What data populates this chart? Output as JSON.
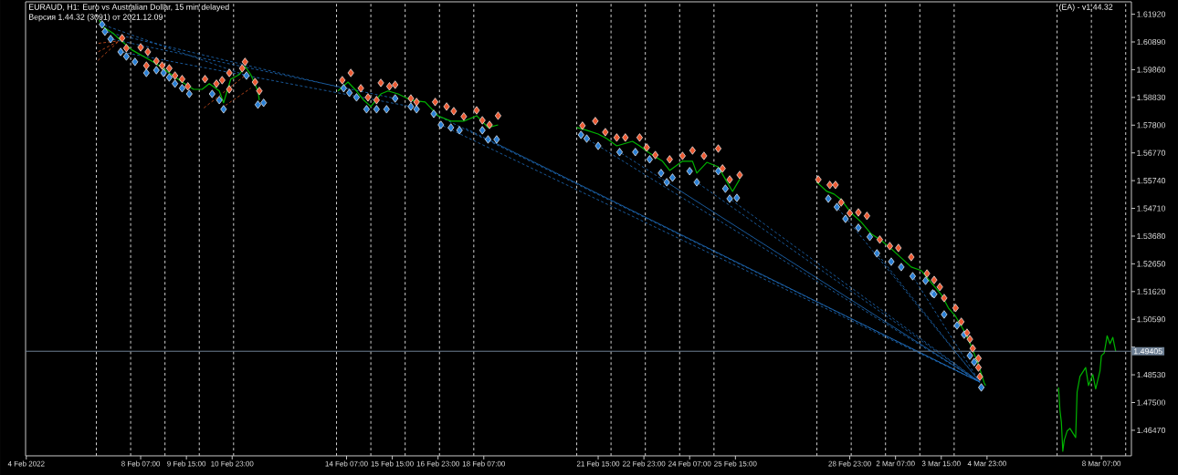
{
  "chart_data": {
    "type": "line",
    "title": "EURAUD, H1: Euro vs Australian Dollar, 15 min delayed",
    "subtitle": "Версия 1.44.32 (3091) от 2021.12.09",
    "annotations": [
      "(EA) - v1.44.32"
    ],
    "xlim": [
      "2022-02-04T22:30",
      "2022-03-09T04:00"
    ],
    "ylim": [
      1.4552,
      1.6238
    ],
    "xticks": [
      {
        "value": "2022-02-04T23:00",
        "label": "4 Feb 2022"
      },
      {
        "value": "2022-02-08T07:00",
        "label": "8 Feb 07:00"
      },
      {
        "value": "2022-02-09T15:00",
        "label": "9 Feb 15:00"
      },
      {
        "value": "2022-02-10T23:00",
        "label": "10 Feb 23:00"
      },
      {
        "value": "2022-02-14T07:00",
        "label": "14 Feb 07:00"
      },
      {
        "value": "2022-02-15T15:00",
        "label": "15 Feb 15:00"
      },
      {
        "value": "2022-02-16T23:00",
        "label": "16 Feb 23:00"
      },
      {
        "value": "2022-02-18T07:00",
        "label": "18 Feb 07:00"
      },
      {
        "value": "2022-02-21T15:00",
        "label": "21 Feb 15:00"
      },
      {
        "value": "2022-02-22T23:00",
        "label": "22 Feb 23:00"
      },
      {
        "value": "2022-02-24T07:00",
        "label": "24 Feb 07:00"
      },
      {
        "value": "2022-02-25T15:00",
        "label": "25 Feb 15:00"
      },
      {
        "value": "2022-02-28T23:00",
        "label": "28 Feb 23:00"
      },
      {
        "value": "2022-03-02T07:00",
        "label": "2 Mar 07:00"
      },
      {
        "value": "2022-03-03T15:00",
        "label": "3 Mar 15:00"
      },
      {
        "value": "2022-03-04T23:00",
        "label": "4 Mar 23:00"
      },
      {
        "value": "2022-03-08T07:00",
        "label": "8 Mar 07:00"
      },
      {
        "value": "2022-02-07T00:00",
        "label": null
      },
      {
        "value": "2022-02-08T00:00",
        "label": null
      },
      {
        "value": "2022-02-09T00:00",
        "label": null
      },
      {
        "value": "2022-02-10T00:00",
        "label": null
      },
      {
        "value": "2022-02-11T00:00",
        "label": null
      },
      {
        "value": "2022-02-14T00:00",
        "label": null
      },
      {
        "value": "2022-02-15T00:00",
        "label": null
      },
      {
        "value": "2022-02-16T00:00",
        "label": null
      },
      {
        "value": "2022-02-17T00:00",
        "label": null
      },
      {
        "value": "2022-02-18T00:00",
        "label": null
      },
      {
        "value": "2022-02-21T00:00",
        "label": null
      },
      {
        "value": "2022-02-22T00:00",
        "label": null
      },
      {
        "value": "2022-02-23T00:00",
        "label": null
      },
      {
        "value": "2022-02-24T00:00",
        "label": null
      },
      {
        "value": "2022-02-25T00:00",
        "label": null
      },
      {
        "value": "2022-02-28T00:00",
        "label": null
      },
      {
        "value": "2022-03-01T00:00",
        "label": null
      },
      {
        "value": "2022-03-02T00:00",
        "label": null
      },
      {
        "value": "2022-03-03T00:00",
        "label": null
      },
      {
        "value": "2022-03-04T00:00",
        "label": null
      },
      {
        "value": "2022-03-07T00:00",
        "label": null
      },
      {
        "value": "2022-03-08T00:00",
        "label": null
      },
      {
        "value": "2022-03-09T00:00",
        "label": null
      }
    ],
    "yticks": [
      {
        "value": 1.6192,
        "label": "1.61920"
      },
      {
        "value": 1.6089,
        "label": "1.60890"
      },
      {
        "value": 1.5986,
        "label": "1.59860"
      },
      {
        "value": 1.5883,
        "label": "1.58830"
      },
      {
        "value": 1.578,
        "label": "1.57800"
      },
      {
        "value": 1.5677,
        "label": "1.56770"
      },
      {
        "value": 1.5574,
        "label": "1.55740"
      },
      {
        "value": 1.5471,
        "label": "1.54710"
      },
      {
        "value": 1.5368,
        "label": "1.53680"
      },
      {
        "value": 1.5265,
        "label": "1.52650"
      },
      {
        "value": 1.5162,
        "label": "1.51620"
      },
      {
        "value": 1.5059,
        "label": "1.50590"
      },
      {
        "value": 1.4956,
        "label": null
      },
      {
        "value": 1.4853,
        "label": "1.48530"
      },
      {
        "value": 1.475,
        "label": "1.47500"
      },
      {
        "value": 1.4647,
        "label": "1.46470"
      }
    ],
    "grid": "x",
    "ref_lines": [
      {
        "axis": "y",
        "value": 1.49405,
        "label": "1.49405",
        "color": "#6d7f93"
      }
    ],
    "series": [
      {
        "line_style": "dashed",
        "color": "#d4501e",
        "x": [
          "2022-02-07T00:00",
          "2022-02-07T16:00"
        ],
        "values": [
          1.6015,
          1.6093
        ]
      },
      {
        "line_style": "dashed",
        "color": "#d4501e",
        "x": [
          "2022-02-07T00:00",
          "2022-02-07T16:00"
        ],
        "values": [
          1.6049,
          1.6093
        ]
      },
      {
        "line_style": "dashed",
        "color": "#d4501e",
        "x": [
          "2022-02-07T00:00",
          "2022-02-07T16:00"
        ],
        "values": [
          1.6083,
          1.6093
        ]
      },
      {
        "line_style": "dashed",
        "color": "#d4501e",
        "x": [
          "2022-02-10T02:00",
          "2022-02-11T08:00"
        ],
        "values": [
          1.5839,
          1.5964
        ]
      },
      {
        "line_style": "dashed",
        "color": "#d4501e",
        "x": [
          "2022-02-10T17:00",
          "2022-02-11T12:00"
        ],
        "values": [
          1.5849,
          1.5917
        ]
      },
      {
        "line_style": "dashed",
        "color": "#1f6fbf",
        "x": [
          "2022-02-07T04:00",
          "2022-02-11T09:00"
        ],
        "values": [
          1.6154,
          1.5964
        ]
      },
      {
        "line_style": "dashed",
        "color": "#1f6fbf",
        "x": [
          "2022-02-07T06:00",
          "2022-02-14T05:00"
        ],
        "values": [
          1.6127,
          1.5917
        ]
      },
      {
        "line_style": "dashed",
        "color": "#1f6fbf",
        "x": [
          "2022-02-07T10:00",
          "2022-02-15T17:00"
        ],
        "values": [
          1.61,
          1.5879
        ]
      },
      {
        "line_style": "dashed",
        "color": "#1f6fbf",
        "x": [
          "2022-02-07T17:00",
          "2022-02-16T04:00"
        ],
        "values": [
          1.6052,
          1.5849
        ]
      },
      {
        "line_style": "dashed",
        "color": "#1f6fbf",
        "x": [
          "2022-02-16T20:00",
          "2022-03-04T18:00"
        ],
        "values": [
          1.5822,
          1.4826
        ]
      },
      {
        "line_style": "dashed",
        "color": "#1f6fbf",
        "x": [
          "2022-02-17T01:00",
          "2022-03-04T18:00"
        ],
        "values": [
          1.5781,
          1.4826
        ]
      },
      {
        "line_style": "dashed",
        "color": "#1f6fbf",
        "x": [
          "2022-02-17T17:00",
          "2022-03-04T18:00"
        ],
        "values": [
          1.5771,
          1.4826
        ]
      },
      {
        "line_style": "dashed",
        "color": "#1f6fbf",
        "x": [
          "2022-02-18T10:00",
          "2022-03-04T18:00"
        ],
        "values": [
          1.5727,
          1.4826
        ]
      },
      {
        "line_style": "dashed",
        "color": "#1f6fbf",
        "x": [
          "2022-02-21T07:00",
          "2022-03-04T18:00"
        ],
        "values": [
          1.573,
          1.4826
        ]
      },
      {
        "line_style": "dashed",
        "color": "#1f6fbf",
        "x": [
          "2022-02-22T06:00",
          "2022-03-04T18:00"
        ],
        "values": [
          1.568,
          1.4826
        ]
      },
      {
        "line_style": "dashed",
        "color": "#1f6fbf",
        "x": [
          "2022-02-23T15:00",
          "2022-03-04T18:00"
        ],
        "values": [
          1.5568,
          1.4826
        ]
      },
      {
        "line_style": "dashed",
        "color": "#1f6fbf",
        "x": [
          "2022-02-24T12:00",
          "2022-03-04T18:00"
        ],
        "values": [
          1.5568,
          1.4826
        ]
      },
      {
        "line_style": "dashed",
        "color": "#1f6fbf",
        "x": [
          "2022-02-25T11:00",
          "2022-03-04T18:00"
        ],
        "values": [
          1.5507,
          1.4826
        ]
      },
      {
        "line_style": "dashed",
        "color": "#1f6fbf",
        "x": [
          "2022-02-28T14:00",
          "2022-03-04T18:00"
        ],
        "values": [
          1.5476,
          1.4826
        ]
      },
      {
        "line_style": "dashed",
        "color": "#1f6fbf",
        "x": [
          "2022-03-01T18:00",
          "2022-03-04T18:00"
        ],
        "values": [
          1.5304,
          1.4826
        ]
      },
      {
        "line_style": "dashed",
        "color": "#1f6fbf",
        "x": [
          "2022-03-02T19:00",
          "2022-03-04T18:00"
        ],
        "values": [
          1.5219,
          1.4826
        ]
      },
      {
        "line_style": "solid",
        "color": "#00b400",
        "x": [
          "2022-02-07T02:00",
          "2022-02-07T05:00",
          "2022-02-07T12:00",
          "2022-02-07T16:00",
          "2022-02-08T01:00",
          "2022-02-08T10:00",
          "2022-02-08T18:00",
          "2022-02-09T03:00",
          "2022-02-09T12:00",
          "2022-02-09T20:00",
          "2022-02-10T02:00",
          "2022-02-10T07:00",
          "2022-02-10T14:00",
          "2022-02-10T17:00",
          "2022-02-10T22:00",
          "2022-02-11T04:00",
          "2022-02-11T08:00",
          "2022-02-11T12:00",
          "2022-02-11T17:00",
          "2022-02-11T18:00",
          "2022-02-12T12:00",
          "2022-02-14T01:00",
          "2022-02-14T08:00",
          "2022-02-14T14:00",
          "2022-02-14T19:00",
          "2022-02-15T00:00",
          "2022-02-15T07:00",
          "2022-02-15T12:00",
          "2022-02-15T19:00",
          "2022-02-16T04:00",
          "2022-02-16T14:00",
          "2022-02-16T23:00",
          "2022-02-17T08:00",
          "2022-02-17T17:00",
          "2022-02-18T02:00",
          "2022-02-18T10:00",
          "2022-02-18T17:00",
          "2022-02-19T12:00",
          "2022-02-21T00:00",
          "2022-02-21T07:00",
          "2022-02-21T15:00",
          "2022-02-21T21:00",
          "2022-02-22T04:00",
          "2022-02-22T15:00",
          "2022-02-22T20:00",
          "2022-02-23T03:00",
          "2022-02-23T12:00",
          "2022-02-23T17:00",
          "2022-02-24T02:00",
          "2022-02-24T09:00",
          "2022-02-24T12:00",
          "2022-02-24T19:00",
          "2022-02-25T03:00",
          "2022-02-25T08:00",
          "2022-02-25T13:00",
          "2022-02-25T18:00",
          "2022-02-26T12:00",
          "2022-02-28T00:00",
          "2022-02-28T07:00",
          "2022-02-28T12:00",
          "2022-02-28T17:00",
          "2022-03-01T00:00",
          "2022-03-01T07:00",
          "2022-03-01T14:00",
          "2022-03-01T21:00",
          "2022-03-02T04:00",
          "2022-03-02T11:00",
          "2022-03-02T18:00",
          "2022-03-03T01:00",
          "2022-03-03T08:00",
          "2022-03-03T15:00",
          "2022-03-03T20:00",
          "2022-03-04T01:00",
          "2022-03-04T07:00",
          "2022-03-04T12:00",
          "2022-03-04T17:00",
          "2022-03-04T21:00",
          "2022-03-04T22:00",
          "2022-03-05T12:00",
          "2022-03-07T01:00",
          "2022-03-07T02:00",
          "2022-03-07T03:00",
          "2022-03-07T04:00",
          "2022-03-07T05:00",
          "2022-03-07T07:00",
          "2022-03-07T09:00",
          "2022-03-07T13:00",
          "2022-03-07T14:00",
          "2022-03-07T16:00",
          "2022-03-07T20:00",
          "2022-03-07T22:00",
          "2022-03-08T01:00",
          "2022-03-08T03:00",
          "2022-03-08T06:00",
          "2022-03-08T07:00",
          "2022-03-08T09:00",
          "2022-03-08T11:00",
          "2022-03-08T13:00",
          "2022-03-08T15:00",
          "2022-03-08T17:00"
        ],
        "values": [
          1.617,
          1.6144,
          1.612,
          1.61,
          1.6059,
          1.6032,
          1.6008,
          1.5974,
          1.594,
          1.5913,
          1.5913,
          1.5934,
          1.5907,
          1.5863,
          1.5951,
          1.5968,
          1.5998,
          1.5968,
          1.5907,
          1.5873,
          null,
          1.5907,
          1.594,
          1.5907,
          1.5873,
          1.5849,
          1.5896,
          1.5907,
          1.5896,
          1.5873,
          1.5866,
          1.5815,
          1.5795,
          1.5795,
          1.5815,
          1.5771,
          1.5781,
          null,
          1.5771,
          1.5761,
          1.5747,
          1.573,
          1.5703,
          1.572,
          1.5703,
          1.5676,
          1.5646,
          1.5612,
          1.5646,
          1.5646,
          1.5602,
          1.5642,
          1.5625,
          1.5579,
          1.5534,
          1.5579,
          null,
          1.5568,
          1.5534,
          1.5524,
          1.5503,
          1.5454,
          1.542,
          1.5376,
          1.5352,
          1.5321,
          1.5287,
          1.5253,
          1.524,
          1.5195,
          1.5151,
          1.5101,
          1.507,
          1.5016,
          1.4959,
          1.4891,
          1.4823,
          1.4813,
          null,
          1.4806,
          1.4722,
          1.4677,
          1.4569,
          1.461,
          1.4644,
          1.4654,
          1.462,
          1.4789,
          1.4847,
          1.488,
          1.4813,
          1.4854,
          1.48,
          1.4867,
          1.4924,
          1.4934,
          1.4998,
          1.4968,
          1.4992,
          1.494
        ]
      },
      {
        "type": "scatter",
        "marker": "diamond",
        "color": "#2a7fd4",
        "x": [
          "2022-02-07T04:00",
          "2022-02-07T06:00",
          "2022-02-07T10:00",
          "2022-02-07T17:00",
          "2022-02-07T21:00",
          "2022-02-08T03:00",
          "2022-02-08T11:00",
          "2022-02-08T18:00",
          "2022-02-08T23:00",
          "2022-02-09T03:00",
          "2022-02-09T07:00",
          "2022-02-09T12:00",
          "2022-02-09T17:00",
          "2022-02-10T09:00",
          "2022-02-10T14:00",
          "2022-02-10T17:00",
          "2022-02-11T09:00",
          "2022-02-11T17:00",
          "2022-02-11T21:00",
          "2022-02-14T05:00",
          "2022-02-14T09:00",
          "2022-02-14T14:00",
          "2022-02-14T21:00",
          "2022-02-15T04:00",
          "2022-02-15T11:00",
          "2022-02-15T17:00",
          "2022-02-16T04:00",
          "2022-02-16T08:00",
          "2022-02-16T20:00",
          "2022-02-17T01:00",
          "2022-02-17T08:00",
          "2022-02-17T14:00",
          "2022-02-18T06:00",
          "2022-02-18T10:00",
          "2022-02-18T16:00",
          "2022-02-21T03:00",
          "2022-02-21T07:00",
          "2022-02-21T15:00",
          "2022-02-22T06:00",
          "2022-02-22T17:00",
          "2022-02-23T03:00",
          "2022-02-23T11:00",
          "2022-02-23T15:00",
          "2022-02-23T19:00",
          "2022-02-24T07:00",
          "2022-02-24T12:00",
          "2022-02-25T03:00",
          "2022-02-25T08:00",
          "2022-02-25T11:00",
          "2022-02-25T16:00",
          "2022-02-28T08:00",
          "2022-02-28T14:00",
          "2022-02-28T20:00",
          "2022-03-01T05:00",
          "2022-03-01T13:00",
          "2022-03-01T18:00",
          "2022-03-02T04:00",
          "2022-03-02T11:00",
          "2022-03-02T19:00",
          "2022-03-03T04:00",
          "2022-03-03T09:00",
          "2022-03-03T10:00",
          "2022-03-03T17:00",
          "2022-03-04T02:00",
          "2022-03-04T07:00",
          "2022-03-04T11:00",
          "2022-03-04T14:00",
          "2022-03-04T19:00"
        ],
        "values": [
          1.6154,
          1.6127,
          1.61,
          1.6052,
          1.6035,
          1.6015,
          1.5974,
          1.5984,
          1.5974,
          1.5957,
          1.5934,
          1.5917,
          1.5896,
          1.5896,
          1.5873,
          1.5839,
          1.5964,
          1.5856,
          1.5863,
          1.5917,
          1.59,
          1.5883,
          1.5839,
          1.5839,
          1.5839,
          1.5879,
          1.5849,
          1.5839,
          1.5822,
          1.5781,
          1.5771,
          1.5761,
          1.5761,
          1.5727,
          1.5727,
          1.5744,
          1.573,
          1.5703,
          1.568,
          1.568,
          1.5653,
          1.5602,
          1.5568,
          1.5585,
          1.5609,
          1.5568,
          1.5609,
          1.5544,
          1.5507,
          1.551,
          1.5507,
          1.5476,
          1.5432,
          1.5399,
          1.5365,
          1.5304,
          1.5273,
          1.5253,
          1.5219,
          1.5202,
          1.5155,
          1.5152,
          1.5077,
          1.5036,
          1.5002,
          1.4924,
          1.49,
          1.4806
        ]
      },
      {
        "type": "scatter",
        "marker": "diamond",
        "color": "#ec5a33",
        "x": [
          "2022-02-07T18:00",
          "2022-02-07T21:00",
          "2022-02-08T07:00",
          "2022-02-08T12:00",
          "2022-02-08T11:00",
          "2022-02-08T18:00",
          "2022-02-08T22:00",
          "2022-02-09T03:00",
          "2022-02-09T07:00",
          "2022-02-09T12:00",
          "2022-02-09T16:00",
          "2022-02-10T04:00",
          "2022-02-10T12:00",
          "2022-02-10T16:00",
          "2022-02-10T21:00",
          "2022-02-10T21:00",
          "2022-02-11T08:00",
          "2022-02-11T06:00",
          "2022-02-11T15:00",
          "2022-02-11T18:00",
          "2022-02-14T04:00",
          "2022-02-14T10:00",
          "2022-02-14T17:00",
          "2022-02-14T22:00",
          "2022-02-15T04:00",
          "2022-02-15T07:00",
          "2022-02-15T13:00",
          "2022-02-15T17:00",
          "2022-02-16T04:00",
          "2022-02-16T08:00",
          "2022-02-16T21:00",
          "2022-02-17T05:00",
          "2022-02-17T10:00",
          "2022-02-17T17:00",
          "2022-02-18T02:00",
          "2022-02-18T06:00",
          "2022-02-18T11:00",
          "2022-02-18T17:00",
          "2022-02-21T04:00",
          "2022-02-21T13:00",
          "2022-02-21T20:00",
          "2022-02-22T04:00",
          "2022-02-22T10:00",
          "2022-02-22T20:00",
          "2022-02-23T01:00",
          "2022-02-23T07:00",
          "2022-02-23T17:00",
          "2022-02-24T02:00",
          "2022-02-24T09:00",
          "2022-02-24T17:00",
          "2022-02-25T03:00",
          "2022-02-25T06:00",
          "2022-02-25T11:00",
          "2022-02-25T18:00",
          "2022-02-28T01:00",
          "2022-02-28T09:00",
          "2022-02-28T13:00",
          "2022-02-28T17:00",
          "2022-02-28T23:00",
          "2022-03-01T05:00",
          "2022-03-01T11:00",
          "2022-03-01T20:00",
          "2022-03-02T03:00",
          "2022-03-02T09:00",
          "2022-03-02T18:00",
          "2022-03-03T05:00",
          "2022-03-03T10:00",
          "2022-03-03T14:00",
          "2022-03-03T17:00",
          "2022-03-04T01:00",
          "2022-03-04T05:00",
          "2022-03-04T09:00",
          "2022-03-04T11:00",
          "2022-03-04T13:00",
          "2022-03-04T17:00",
          "2022-03-04T17:00",
          "2022-03-04T18:00"
        ],
        "values": [
          1.6103,
          1.6066,
          1.6069,
          1.6052,
          1.6001,
          1.6018,
          1.6001,
          1.5991,
          1.5964,
          1.5951,
          1.5924,
          1.5951,
          1.5934,
          1.5947,
          1.5913,
          1.5974,
          1.6015,
          1.5991,
          1.594,
          1.5907,
          1.5947,
          1.5974,
          1.5917,
          1.5883,
          1.5873,
          1.5937,
          1.5924,
          1.593,
          1.5879,
          1.5866,
          1.5866,
          1.5849,
          1.5832,
          1.5812,
          1.5835,
          1.5798,
          1.5781,
          1.5815,
          1.5778,
          1.5795,
          1.5754,
          1.5734,
          1.5734,
          1.5734,
          1.5697,
          1.5669,
          1.5653,
          1.5666,
          1.5686,
          1.5666,
          1.5693,
          1.5619,
          1.5578,
          1.5595,
          1.5578,
          1.5558,
          1.5558,
          1.5493,
          1.5453,
          1.5456,
          1.5443,
          1.5355,
          1.5331,
          1.5324,
          1.529,
          1.5229,
          1.5205,
          1.5179,
          1.5138,
          1.5101,
          1.505,
          1.5009,
          1.4985,
          1.4951,
          1.4914,
          1.488,
          1.4846
        ]
      }
    ]
  }
}
